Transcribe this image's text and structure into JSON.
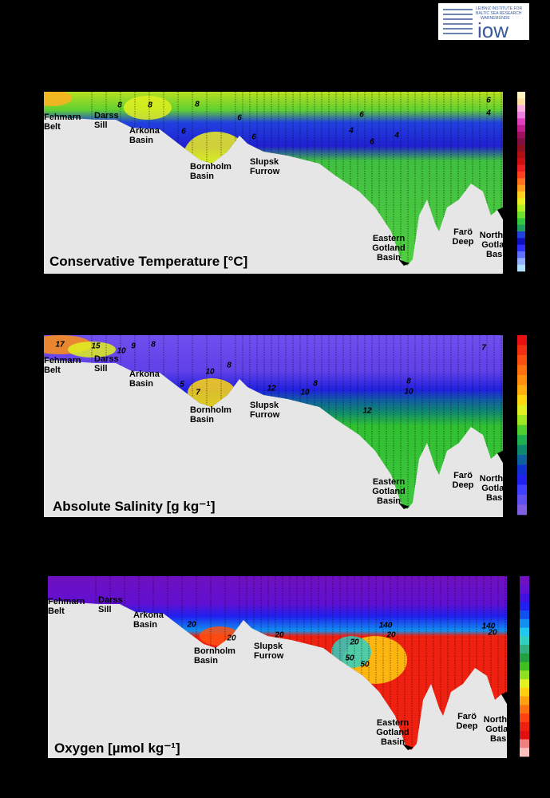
{
  "logo": {
    "lines": [
      "LEIBNIZ INSTITUTE FOR",
      "BALTIC SEA RESEARCH",
      "WARNEMÜNDE"
    ],
    "name": "iow"
  },
  "chart_data": [
    {
      "type": "contour",
      "title": "Conservative Temperature [°C]",
      "places": [
        [
          "Fehmarn",
          "Belt"
        ],
        [
          "Darss",
          "Sill"
        ],
        [
          "Arkona",
          "Basin"
        ],
        [
          "Bornholm",
          "Basin"
        ],
        [
          "Slupsk",
          "Furrow"
        ],
        [
          "Eastern",
          "Gotland",
          "Basin"
        ],
        [
          "Farö",
          "Deep"
        ],
        [
          "Northern",
          "Gotland",
          "Basin"
        ]
      ],
      "contour_labels": [
        6,
        4,
        8,
        8,
        8,
        6,
        6,
        6,
        6,
        4,
        6,
        4
      ],
      "colorbar": [
        "#fff5c0",
        "#ffe0a0",
        "#ffb0e0",
        "#f080e0",
        "#e040c0",
        "#c02090",
        "#a01060",
        "#801040",
        "#901020",
        "#b01010",
        "#d01010",
        "#f02020",
        "#ff4020",
        "#ff7020",
        "#ffa020",
        "#ffd020",
        "#e8f020",
        "#b0f020",
        "#70e030",
        "#30c840",
        "#20a060",
        "#2040e0",
        "#1010c0",
        "#3030ff",
        "#6070ff",
        "#90b0ff",
        "#b0e0ff"
      ]
    },
    {
      "type": "contour",
      "title": "Absolute Salinity [g kg⁻¹]",
      "places": [
        [
          "Fehmarn",
          "Belt"
        ],
        [
          "Darss",
          "Sill"
        ],
        [
          "Arkona",
          "Basin"
        ],
        [
          "Bornholm",
          "Basin"
        ],
        [
          "Slupsk",
          "Furrow"
        ],
        [
          "Eastern",
          "Gotland",
          "Basin"
        ],
        [
          "Farö",
          "Deep"
        ],
        [
          "Northern",
          "Gotland",
          "Basin"
        ]
      ],
      "contour_labels": [
        17,
        15,
        10,
        9,
        8,
        10,
        8,
        5,
        7,
        12,
        10,
        8,
        8,
        10,
        12,
        7
      ],
      "colorbar": [
        "#e81010",
        "#f03010",
        "#f85010",
        "#ff7010",
        "#ff9010",
        "#ffb010",
        "#ffd810",
        "#e0f020",
        "#a0e820",
        "#50d030",
        "#20b050",
        "#108870",
        "#1060a0",
        "#1030d0",
        "#2020f0",
        "#4040ff",
        "#6050f0",
        "#8060e0"
      ]
    },
    {
      "type": "contour",
      "title": "Oxygen [µmol kg⁻¹]",
      "places": [
        [
          "Fehmarn",
          "Belt"
        ],
        [
          "Darss",
          "Sill"
        ],
        [
          "Arkona",
          "Basin"
        ],
        [
          "Bornholm",
          "Basin"
        ],
        [
          "Slupsk",
          "Furrow"
        ],
        [
          "Eastern",
          "Gotland",
          "Basin"
        ],
        [
          "Farö",
          "Deep"
        ],
        [
          "Northern",
          "Gotland",
          "Basin"
        ]
      ],
      "contour_labels": [
        20,
        20,
        20,
        20,
        140,
        20,
        50,
        50,
        140,
        20
      ],
      "colorbar": [
        "#7010c0",
        "#6010d0",
        "#4010e0",
        "#2020f0",
        "#1050f0",
        "#1090f0",
        "#20c8f0",
        "#30d0c0",
        "#30b080",
        "#20a040",
        "#40c020",
        "#90e020",
        "#e0f020",
        "#ffd010",
        "#ffa010",
        "#ff7010",
        "#ff4010",
        "#f02010",
        "#e01010",
        "#f08080",
        "#ffc0c0"
      ]
    }
  ]
}
